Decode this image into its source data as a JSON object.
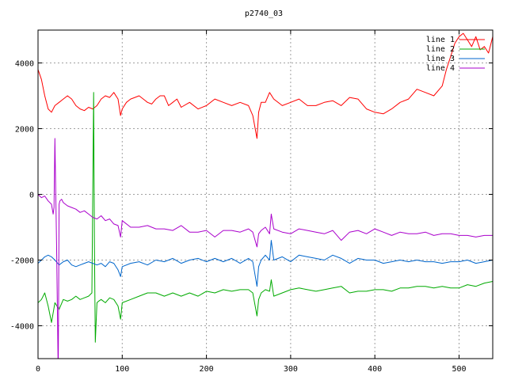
{
  "chart_data": {
    "type": "line",
    "title": "p2740_03",
    "xlabel": "",
    "ylabel": "",
    "xlim": [
      0,
      540
    ],
    "ylim": [
      -5000,
      5000
    ],
    "x_ticks": [
      0,
      100,
      200,
      300,
      400,
      500
    ],
    "y_ticks": [
      -4000,
      -2000,
      0,
      2000,
      4000
    ],
    "grid": true,
    "legend_position": "top-right",
    "series": [
      {
        "name": "line 1",
        "color": "#ff0000",
        "x": [
          0,
          4,
          8,
          12,
          16,
          20,
          25,
          30,
          35,
          40,
          45,
          50,
          55,
          60,
          65,
          70,
          75,
          80,
          85,
          90,
          95,
          98,
          100,
          105,
          110,
          115,
          120,
          125,
          130,
          135,
          140,
          145,
          150,
          155,
          160,
          165,
          170,
          180,
          190,
          200,
          210,
          220,
          230,
          240,
          250,
          255,
          260,
          262,
          265,
          270,
          275,
          280,
          290,
          300,
          310,
          320,
          330,
          340,
          350,
          360,
          370,
          380,
          390,
          400,
          410,
          420,
          430,
          440,
          450,
          460,
          470,
          480,
          485,
          490,
          495,
          500,
          505,
          510,
          515,
          520,
          525,
          530,
          535,
          540
        ],
        "y": [
          3800,
          3500,
          3000,
          2600,
          2500,
          2700,
          2800,
          2900,
          3000,
          2900,
          2700,
          2600,
          2550,
          2650,
          2600,
          2700,
          2900,
          3000,
          2950,
          3100,
          2900,
          2400,
          2600,
          2800,
          2900,
          2950,
          3000,
          2900,
          2800,
          2750,
          2900,
          3000,
          3000,
          2700,
          2800,
          2900,
          2650,
          2800,
          2600,
          2700,
          2900,
          2800,
          2700,
          2800,
          2700,
          2400,
          1700,
          2500,
          2800,
          2800,
          3100,
          2900,
          2700,
          2800,
          2900,
          2700,
          2700,
          2800,
          2850,
          2700,
          2950,
          2900,
          2600,
          2500,
          2450,
          2600,
          2800,
          2900,
          3200,
          3100,
          3000,
          3300,
          3800,
          4200,
          4600,
          4800,
          4900,
          4700,
          4500,
          4800,
          4400,
          4500,
          4300,
          4800
        ]
      },
      {
        "name": "line 2",
        "color": "#00aa00",
        "x": [
          0,
          4,
          8,
          12,
          16,
          20,
          25,
          30,
          35,
          40,
          45,
          50,
          55,
          60,
          64,
          66,
          67,
          68,
          70,
          72,
          75,
          80,
          85,
          90,
          95,
          98,
          100,
          110,
          120,
          130,
          140,
          150,
          160,
          170,
          180,
          190,
          200,
          210,
          220,
          230,
          240,
          250,
          255,
          260,
          262,
          265,
          270,
          275,
          277,
          280,
          290,
          300,
          310,
          320,
          330,
          340,
          350,
          360,
          370,
          380,
          390,
          400,
          410,
          420,
          430,
          440,
          450,
          460,
          470,
          480,
          490,
          500,
          510,
          520,
          530,
          540
        ],
        "y": [
          -3300,
          -3200,
          -3000,
          -3400,
          -3900,
          -3300,
          -3500,
          -3200,
          -3250,
          -3200,
          -3100,
          -3200,
          -3150,
          -3100,
          -3000,
          3100,
          -1500,
          -4500,
          -3300,
          -3250,
          -3200,
          -3300,
          -3150,
          -3200,
          -3400,
          -3800,
          -3300,
          -3200,
          -3100,
          -3000,
          -3000,
          -3100,
          -3000,
          -3100,
          -3000,
          -3100,
          -2950,
          -3000,
          -2900,
          -2950,
          -2900,
          -2900,
          -3000,
          -3700,
          -3200,
          -3000,
          -2900,
          -2950,
          -2600,
          -3100,
          -3000,
          -2900,
          -2850,
          -2900,
          -2950,
          -2900,
          -2850,
          -2800,
          -3000,
          -2950,
          -2950,
          -2900,
          -2900,
          -2950,
          -2850,
          -2850,
          -2800,
          -2800,
          -2850,
          -2800,
          -2850,
          -2850,
          -2750,
          -2800,
          -2700,
          -2650
        ]
      },
      {
        "name": "line 3",
        "color": "#0066cc",
        "x": [
          0,
          4,
          8,
          12,
          16,
          20,
          25,
          30,
          35,
          40,
          45,
          50,
          55,
          60,
          65,
          70,
          75,
          80,
          85,
          90,
          95,
          98,
          100,
          110,
          120,
          130,
          140,
          150,
          160,
          170,
          180,
          190,
          200,
          210,
          220,
          230,
          240,
          250,
          255,
          260,
          262,
          265,
          270,
          275,
          277,
          280,
          290,
          300,
          310,
          320,
          330,
          340,
          350,
          360,
          370,
          380,
          390,
          400,
          410,
          420,
          430,
          440,
          450,
          460,
          470,
          480,
          490,
          500,
          510,
          520,
          530,
          540
        ],
        "y": [
          -2100,
          -2000,
          -1900,
          -1850,
          -1900,
          -2000,
          -2150,
          -2050,
          -2000,
          -2150,
          -2200,
          -2150,
          -2100,
          -2050,
          -2100,
          -2150,
          -2100,
          -2200,
          -2050,
          -2100,
          -2300,
          -2500,
          -2200,
          -2100,
          -2050,
          -2150,
          -2000,
          -2050,
          -1950,
          -2100,
          -2000,
          -1950,
          -2050,
          -1950,
          -2050,
          -1950,
          -2100,
          -1950,
          -2050,
          -2800,
          -2200,
          -2000,
          -1850,
          -2000,
          -1400,
          -2000,
          -1900,
          -2050,
          -1850,
          -1900,
          -1950,
          -2000,
          -1850,
          -1950,
          -2100,
          -1950,
          -2000,
          -2000,
          -2100,
          -2050,
          -2000,
          -2050,
          -2000,
          -2050,
          -2050,
          -2100,
          -2050,
          -2050,
          -2000,
          -2100,
          -2050,
          -2000
        ]
      },
      {
        "name": "line 4",
        "color": "#aa00cc",
        "x": [
          0,
          4,
          8,
          12,
          16,
          18,
          19,
          20,
          22,
          24,
          25,
          26,
          28,
          30,
          35,
          40,
          45,
          50,
          55,
          60,
          65,
          70,
          75,
          80,
          85,
          90,
          95,
          98,
          100,
          110,
          120,
          130,
          140,
          150,
          160,
          170,
          180,
          190,
          200,
          210,
          220,
          230,
          240,
          250,
          255,
          260,
          262,
          265,
          270,
          275,
          277,
          280,
          290,
          300,
          310,
          320,
          330,
          340,
          350,
          360,
          370,
          380,
          390,
          400,
          410,
          420,
          430,
          440,
          450,
          460,
          470,
          480,
          490,
          500,
          510,
          520,
          530,
          540
        ],
        "y": [
          0,
          -100,
          -50,
          -200,
          -300,
          -600,
          -400,
          1700,
          -1500,
          -5500,
          -300,
          -200,
          -150,
          -250,
          -350,
          -400,
          -450,
          -550,
          -500,
          -600,
          -700,
          -750,
          -650,
          -800,
          -750,
          -900,
          -950,
          -1300,
          -800,
          -1000,
          -1000,
          -950,
          -1050,
          -1050,
          -1100,
          -950,
          -1150,
          -1150,
          -1100,
          -1300,
          -1100,
          -1100,
          -1150,
          -1050,
          -1150,
          -1600,
          -1200,
          -1100,
          -1000,
          -1200,
          -600,
          -1050,
          -1150,
          -1200,
          -1050,
          -1100,
          -1150,
          -1200,
          -1100,
          -1400,
          -1150,
          -1100,
          -1200,
          -1050,
          -1150,
          -1250,
          -1150,
          -1200,
          -1200,
          -1150,
          -1250,
          -1200,
          -1200,
          -1250,
          -1250,
          -1300,
          -1250,
          -1250
        ]
      }
    ]
  }
}
